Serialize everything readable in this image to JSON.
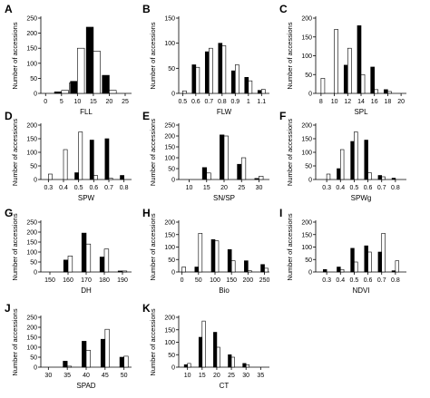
{
  "figure": {
    "ylabel": "Number of accessions",
    "bar_colors": {
      "black": "#000000",
      "white": "#ffffff",
      "stroke": "#000000"
    }
  },
  "chart_data": [
    {
      "letter": "A",
      "type": "bar",
      "xlabel": "FLL",
      "ylim": [
        0,
        250
      ],
      "yticks": [
        0,
        50,
        100,
        150,
        200,
        250
      ],
      "xlim": [
        -1.5,
        27
      ],
      "xticks": [
        0,
        5,
        10,
        15,
        20,
        25
      ],
      "bar_width": 2.2,
      "bars": [
        {
          "x": 5,
          "black": 5,
          "white": 10
        },
        {
          "x": 7.5,
          "black": 0,
          "white": 35
        },
        {
          "x": 10,
          "black": 40,
          "white": 150
        },
        {
          "x": 15,
          "black": 220,
          "white": 140
        },
        {
          "x": 20,
          "black": 60,
          "white": 10
        }
      ]
    },
    {
      "letter": "B",
      "type": "bar",
      "xlabel": "FLW",
      "ylim": [
        0,
        150
      ],
      "yticks": [
        0,
        50,
        100,
        150
      ],
      "xlim": [
        0.47,
        1.16
      ],
      "xticks": [
        0.5,
        0.6,
        0.7,
        0.8,
        0.9,
        1.0,
        1.1
      ],
      "bar_width": 0.028,
      "bars": [
        {
          "x": 0.5,
          "black": 0,
          "white": 5
        },
        {
          "x": 0.6,
          "black": 57,
          "white": 52
        },
        {
          "x": 0.7,
          "black": 83,
          "white": 90
        },
        {
          "x": 0.8,
          "black": 100,
          "white": 95
        },
        {
          "x": 0.9,
          "black": 45,
          "white": 57
        },
        {
          "x": 1.0,
          "black": 32,
          "white": 25
        },
        {
          "x": 1.1,
          "black": 6,
          "white": 8
        }
      ]
    },
    {
      "letter": "C",
      "type": "bar",
      "xlabel": "SPL",
      "ylim": [
        0,
        200
      ],
      "yticks": [
        0,
        50,
        100,
        150,
        200
      ],
      "xlim": [
        7.2,
        20.8
      ],
      "xticks": [
        8,
        10,
        12,
        14,
        16,
        18,
        20
      ],
      "bar_width": 0.55,
      "bars": [
        {
          "x": 8,
          "black": 0,
          "white": 40
        },
        {
          "x": 10,
          "black": 0,
          "white": 170
        },
        {
          "x": 12,
          "black": 75,
          "white": 120
        },
        {
          "x": 14,
          "black": 180,
          "white": 50
        },
        {
          "x": 16,
          "black": 70,
          "white": 10
        },
        {
          "x": 18,
          "black": 10,
          "white": 5
        },
        {
          "x": 20,
          "black": 0,
          "white": 0
        }
      ]
    },
    {
      "letter": "D",
      "type": "bar",
      "xlabel": "SPW",
      "ylim": [
        0,
        200
      ],
      "yticks": [
        0,
        50,
        100,
        150,
        200
      ],
      "xlim": [
        0.25,
        0.85
      ],
      "xticks": [
        0.3,
        0.4,
        0.5,
        0.6,
        0.7,
        0.8
      ],
      "bar_width": 0.025,
      "bars": [
        {
          "x": 0.3,
          "black": 0,
          "white": 20
        },
        {
          "x": 0.4,
          "black": 0,
          "white": 110
        },
        {
          "x": 0.5,
          "black": 25,
          "white": 175
        },
        {
          "x": 0.6,
          "black": 145,
          "white": 15
        },
        {
          "x": 0.7,
          "black": 150,
          "white": 5
        },
        {
          "x": 0.8,
          "black": 15,
          "white": 0
        }
      ]
    },
    {
      "letter": "E",
      "type": "bar",
      "xlabel": "SN/SP",
      "ylim": [
        0,
        250
      ],
      "yticks": [
        0,
        50,
        100,
        150,
        200,
        250
      ],
      "xlim": [
        7,
        33
      ],
      "xticks": [
        10,
        15,
        20,
        25,
        30
      ],
      "bar_width": 1.2,
      "bars": [
        {
          "x": 10,
          "black": 0,
          "white": 0
        },
        {
          "x": 15,
          "black": 55,
          "white": 30
        },
        {
          "x": 20,
          "black": 205,
          "white": 200
        },
        {
          "x": 25,
          "black": 70,
          "white": 100
        },
        {
          "x": 30,
          "black": 5,
          "white": 15
        }
      ]
    },
    {
      "letter": "F",
      "type": "bar",
      "xlabel": "SPWg",
      "ylim": [
        0,
        200
      ],
      "yticks": [
        0,
        50,
        100,
        150,
        200
      ],
      "xlim": [
        0.22,
        0.88
      ],
      "xticks": [
        0.3,
        0.4,
        0.5,
        0.6,
        0.7,
        0.8
      ],
      "bar_width": 0.025,
      "bars": [
        {
          "x": 0.3,
          "black": 0,
          "white": 20
        },
        {
          "x": 0.4,
          "black": 40,
          "white": 110
        },
        {
          "x": 0.5,
          "black": 140,
          "white": 175
        },
        {
          "x": 0.6,
          "black": 145,
          "white": 25
        },
        {
          "x": 0.7,
          "black": 15,
          "white": 10
        },
        {
          "x": 0.8,
          "black": 5,
          "white": 0
        }
      ]
    },
    {
      "letter": "G",
      "type": "bar",
      "xlabel": "DH",
      "ylim": [
        0,
        250
      ],
      "yticks": [
        0,
        50,
        100,
        150,
        200,
        250
      ],
      "xlim": [
        145,
        195
      ],
      "xticks": [
        150,
        160,
        170,
        180,
        190
      ],
      "bar_width": 2.4,
      "bars": [
        {
          "x": 150,
          "black": 0,
          "white": 0
        },
        {
          "x": 160,
          "black": 60,
          "white": 80
        },
        {
          "x": 170,
          "black": 195,
          "white": 140
        },
        {
          "x": 180,
          "black": 75,
          "white": 115
        },
        {
          "x": 190,
          "black": 5,
          "white": 5
        }
      ]
    },
    {
      "letter": "H",
      "type": "bar",
      "xlabel": "Bio",
      "ylim": [
        0,
        200
      ],
      "yticks": [
        0,
        50,
        100,
        150,
        200
      ],
      "xlim": [
        -10,
        265
      ],
      "xticks": [
        0,
        50,
        100,
        150,
        200,
        250
      ],
      "bar_width": 11,
      "bars": [
        {
          "x": 0,
          "black": 0,
          "white": 20
        },
        {
          "x": 50,
          "black": 20,
          "white": 155
        },
        {
          "x": 100,
          "black": 130,
          "white": 125
        },
        {
          "x": 150,
          "black": 90,
          "white": 45
        },
        {
          "x": 200,
          "black": 45,
          "white": 5
        },
        {
          "x": 250,
          "black": 30,
          "white": 15
        }
      ]
    },
    {
      "letter": "I",
      "type": "bar",
      "xlabel": "NDVI",
      "ylim": [
        0,
        200
      ],
      "yticks": [
        0,
        50,
        100,
        150,
        200
      ],
      "xlim": [
        0.22,
        0.88
      ],
      "xticks": [
        0.3,
        0.4,
        0.5,
        0.6,
        0.7,
        0.8
      ],
      "bar_width": 0.025,
      "bars": [
        {
          "x": 0.3,
          "black": 10,
          "white": 0
        },
        {
          "x": 0.4,
          "black": 20,
          "white": 10
        },
        {
          "x": 0.5,
          "black": 95,
          "white": 40
        },
        {
          "x": 0.6,
          "black": 105,
          "white": 80
        },
        {
          "x": 0.7,
          "black": 80,
          "white": 155
        },
        {
          "x": 0.8,
          "black": 5,
          "white": 45
        }
      ]
    },
    {
      "letter": "J",
      "type": "bar",
      "xlabel": "SPAD",
      "ylim": [
        0,
        250
      ],
      "yticks": [
        0,
        50,
        100,
        150,
        200,
        250
      ],
      "xlim": [
        28,
        52
      ],
      "xticks": [
        30,
        35,
        40,
        45,
        50
      ],
      "bar_width": 1.1,
      "bars": [
        {
          "x": 30,
          "black": 0,
          "white": 0
        },
        {
          "x": 35,
          "black": 30,
          "white": 5
        },
        {
          "x": 40,
          "black": 130,
          "white": 85
        },
        {
          "x": 45,
          "black": 140,
          "white": 190
        },
        {
          "x": 50,
          "black": 50,
          "white": 55
        }
      ]
    },
    {
      "letter": "K",
      "type": "bar",
      "xlabel": "CT",
      "ylim": [
        0,
        200
      ],
      "yticks": [
        0,
        50,
        100,
        150,
        200
      ],
      "xlim": [
        7,
        38
      ],
      "xticks": [
        10,
        15,
        20,
        25,
        30,
        35
      ],
      "bar_width": 1.1,
      "bars": [
        {
          "x": 10,
          "black": 10,
          "white": 15
        },
        {
          "x": 15,
          "black": 120,
          "white": 185
        },
        {
          "x": 20,
          "black": 140,
          "white": 80
        },
        {
          "x": 25,
          "black": 50,
          "white": 40
        },
        {
          "x": 30,
          "black": 15,
          "white": 10
        },
        {
          "x": 35,
          "black": 0,
          "white": 0
        }
      ]
    }
  ]
}
